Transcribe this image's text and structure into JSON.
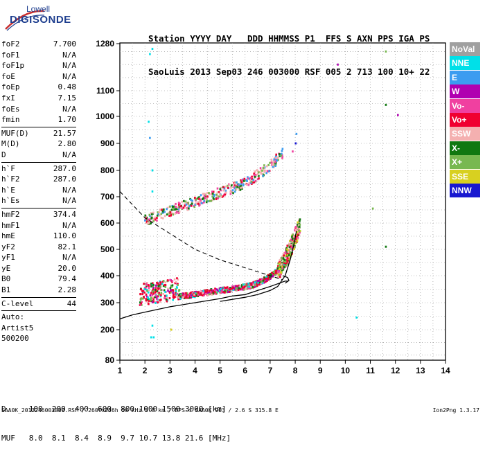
{
  "logo": {
    "brand": "Lowell",
    "name": "DIGISONDE"
  },
  "header": {
    "line1": "Station YYYY DAY   DDD HHMMSS P1  FFS S AXN PPS IGA PS",
    "line2": "SaoLuis 2013 Sep03 246 003000 RSF 005 2 713 100 10+ 22"
  },
  "params": [
    {
      "group": [
        {
          "k": "foF2",
          "v": "7.700"
        },
        {
          "k": "foF1",
          "v": "N/A"
        },
        {
          "k": "foF1p",
          "v": "N/A"
        },
        {
          "k": "foE",
          "v": "N/A"
        },
        {
          "k": "foEp",
          "v": "0.48"
        },
        {
          "k": "fxI",
          "v": "7.15"
        },
        {
          "k": "foEs",
          "v": "N/A"
        },
        {
          "k": "fmin",
          "v": "1.70"
        }
      ]
    },
    {
      "group": [
        {
          "k": "MUF(D)",
          "v": "21.57"
        },
        {
          "k": "M(D)",
          "v": "2.80"
        },
        {
          "k": "D",
          "v": "N/A"
        }
      ]
    },
    {
      "group": [
        {
          "k": "h`F",
          "v": "287.0"
        },
        {
          "k": "h`F2",
          "v": "287.0"
        },
        {
          "k": "h`E",
          "v": "N/A"
        },
        {
          "k": "h`Es",
          "v": "N/A"
        }
      ]
    },
    {
      "group": [
        {
          "k": "hmF2",
          "v": "374.4"
        },
        {
          "k": "hmF1",
          "v": "N/A"
        },
        {
          "k": "hmE",
          "v": "110.0"
        },
        {
          "k": "yF2",
          "v": "82.1"
        },
        {
          "k": "yF1",
          "v": "N/A"
        },
        {
          "k": "yE",
          "v": "20.0"
        },
        {
          "k": "B0",
          "v": "79.4"
        },
        {
          "k": "B1",
          "v": "2.28"
        }
      ]
    },
    {
      "group": [
        {
          "k": "C-level",
          "v": "44"
        }
      ]
    }
  ],
  "auto": [
    "Auto:",
    "Artist5",
    "500200"
  ],
  "legend": [
    {
      "label": "NoVal",
      "color": "#a0a0a0"
    },
    {
      "label": "NNE",
      "color": "#00e0e8"
    },
    {
      "label": "E",
      "color": "#3c9cf0"
    },
    {
      "label": "W",
      "color": "#b000b0"
    },
    {
      "label": "Vo-",
      "color": "#f040a0"
    },
    {
      "label": "Vo+",
      "color": "#f00030"
    },
    {
      "label": "SSW",
      "color": "#f4b0b0"
    },
    {
      "label": "X-",
      "color": "#107810"
    },
    {
      "label": "X+",
      "color": "#78b850"
    },
    {
      "label": "SSE",
      "color": "#d8d020"
    },
    {
      "label": "NNW",
      "color": "#1818d0"
    }
  ],
  "table": {
    "d_row": "D     100  200  400  600  800 1000 1500 3000 [km]",
    "muf_row": "MUF   8.0  8.1  8.4  8.9  9.7 10.7 13.8 21.6 [MHz]"
  },
  "footer": {
    "left": "SAA0K_2013246003000.RSF / 260fx256h 50 kHz 5.0 km / DPS-4 SAA0K 903 / 2.6 S 315.8 E",
    "right": "Ion2Png 1.3.17"
  },
  "chart_data": {
    "type": "scatter",
    "x_ticks": [
      1,
      2,
      3,
      4,
      5,
      6,
      7,
      8,
      9,
      10,
      11,
      12,
      13,
      14
    ],
    "y_ticks": [
      80,
      200,
      300,
      400,
      500,
      600,
      700,
      800,
      900,
      1000,
      1100,
      1280
    ],
    "xlim": [
      1,
      14
    ],
    "y_axis_scale": "non-linear",
    "grid": true,
    "profile_curve": {
      "x": [
        1.0,
        1.5,
        2.0,
        3.0,
        4.0,
        5.0,
        5.5,
        6.0,
        6.5,
        7.0,
        7.3,
        7.6,
        7.7
      ],
      "y": [
        240,
        255,
        265,
        285,
        300,
        315,
        325,
        330,
        345,
        360,
        370,
        380,
        380
      ]
    },
    "dashed_curve": {
      "x": [
        1.0,
        1.5,
        2.0,
        3.0,
        4.0,
        5.0,
        6.0,
        7.0,
        7.5
      ],
      "y": [
        720,
        670,
        620,
        560,
        500,
        460,
        430,
        400,
        385
      ]
    },
    "trace_curve": {
      "x": [
        5.0,
        6.0,
        6.5,
        7.0,
        7.3,
        7.6,
        7.8,
        7.95,
        8.05
      ],
      "y": [
        305,
        320,
        330,
        345,
        360,
        400,
        460,
        520,
        570
      ]
    },
    "echo_clusters": [
      {
        "label": "F2 trace",
        "x": [
          1.8,
          7.7
        ],
        "y": [
          285,
          420
        ]
      },
      {
        "label": "F2 lower spread",
        "x": [
          1.7,
          3.5
        ],
        "y": [
          290,
          420
        ]
      },
      {
        "label": "F2 cusp",
        "x": [
          7.3,
          8.2
        ],
        "y": [
          380,
          600
        ]
      },
      {
        "label": "second hop",
        "x": [
          2.0,
          7.5
        ],
        "y": [
          580,
          820
        ]
      },
      {
        "label": "sparse echoes",
        "x": [
          2.1,
          12.2
        ],
        "y": [
          170,
          1280
        ]
      }
    ]
  }
}
